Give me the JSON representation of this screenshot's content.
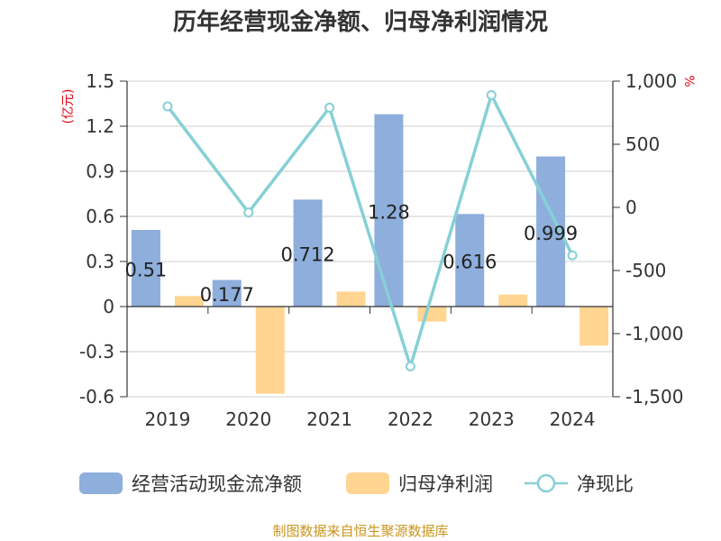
{
  "chart_data": {
    "type": "bar",
    "title": "历年经营现金净额、归母净利润情况",
    "categories": [
      "2019",
      "2020",
      "2021",
      "2022",
      "2023",
      "2024"
    ],
    "y_left_unit": "(亿元)",
    "y_right_unit": "%",
    "y_left_range": [
      -0.6,
      1.5
    ],
    "y_left_ticks": [
      "1.5",
      "1.2",
      "0.9",
      "0.6",
      "0.3",
      "0",
      "-0.3",
      "-0.6"
    ],
    "y_right_range": [
      -1500,
      1000
    ],
    "y_right_ticks": [
      "1,000",
      "500",
      "0",
      "-500",
      "-1,000",
      "-1,500"
    ],
    "grid": true,
    "legend_position": "bottom",
    "series": [
      {
        "name": "经营活动现金流净额",
        "kind": "bar",
        "axis": "left",
        "color": "#8eaedc",
        "values": [
          0.51,
          0.177,
          0.712,
          1.28,
          0.616,
          0.999
        ],
        "labels": [
          "0.51",
          "0.177",
          "0.712",
          "1.28",
          "0.616",
          "0.999"
        ]
      },
      {
        "name": "归母净利润",
        "kind": "bar",
        "axis": "left",
        "color": "#ffd591",
        "values": [
          0.07,
          -0.58,
          0.1,
          -0.1,
          0.08,
          -0.26
        ]
      },
      {
        "name": "净现比",
        "kind": "line",
        "axis": "right",
        "color": "#86d0d6",
        "values": [
          800,
          -40,
          790,
          -1260,
          890,
          -380
        ]
      }
    ]
  },
  "source_text": "制图数据来自恒生聚源数据库"
}
